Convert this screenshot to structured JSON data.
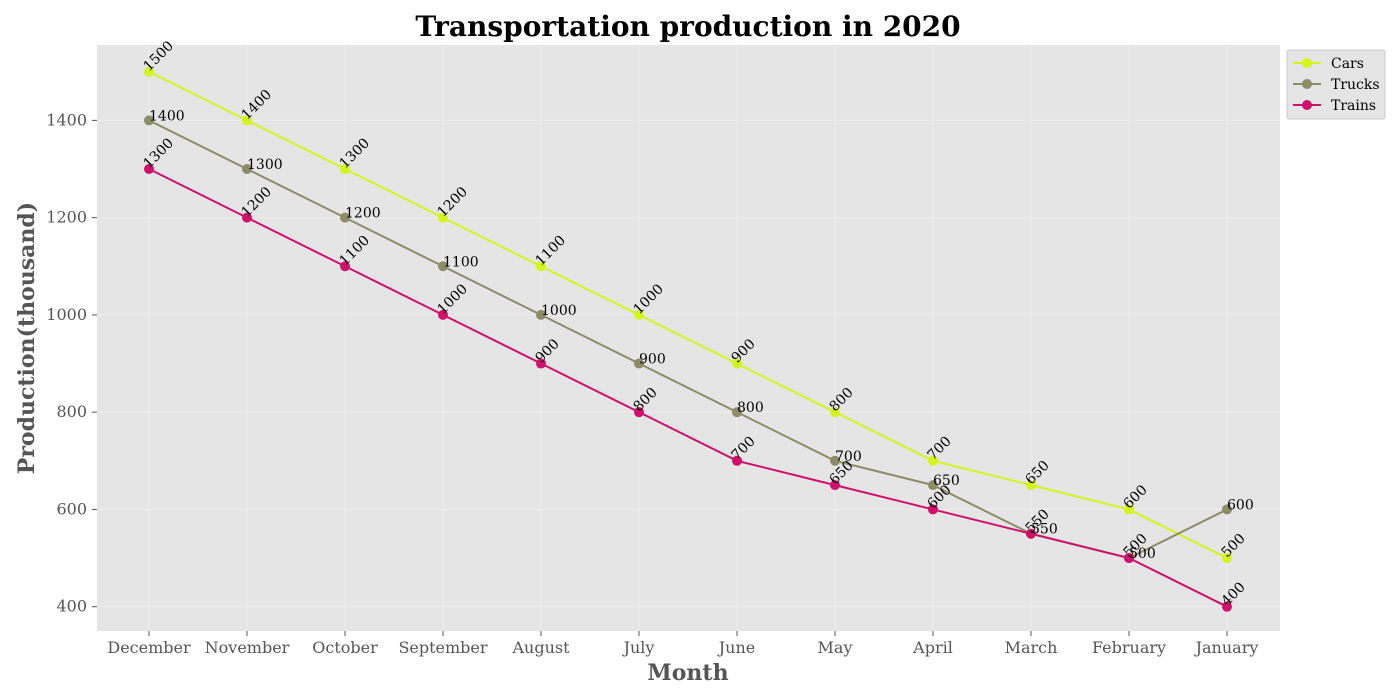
{
  "chart_data": {
    "type": "line",
    "title": "Transportation production in 2020",
    "xlabel": "Month",
    "ylabel": "Production(thousand)",
    "categories": [
      "December",
      "November",
      "October",
      "September",
      "August",
      "July",
      "June",
      "May",
      "April",
      "March",
      "February",
      "January"
    ],
    "ylim": [
      350,
      1555
    ],
    "yticks": [
      400,
      600,
      800,
      1000,
      1200,
      1400
    ],
    "grid": true,
    "legend_position": "top-right",
    "series": [
      {
        "name": "Cars",
        "color": "#d4f51c",
        "label_rotation": -45,
        "values": [
          1500,
          1400,
          1300,
          1200,
          1100,
          1000,
          900,
          800,
          700,
          650,
          600,
          500
        ]
      },
      {
        "name": "Trucks",
        "color": "#8c8c69",
        "label_rotation": 0,
        "values": [
          1400,
          1300,
          1200,
          1100,
          1000,
          900,
          800,
          700,
          650,
          550,
          500,
          600
        ]
      },
      {
        "name": "Trains",
        "color": "#d0106a",
        "label_rotation": -45,
        "values": [
          1300,
          1200,
          1100,
          1000,
          900,
          800,
          700,
          650,
          600,
          550,
          500,
          400
        ]
      }
    ]
  }
}
